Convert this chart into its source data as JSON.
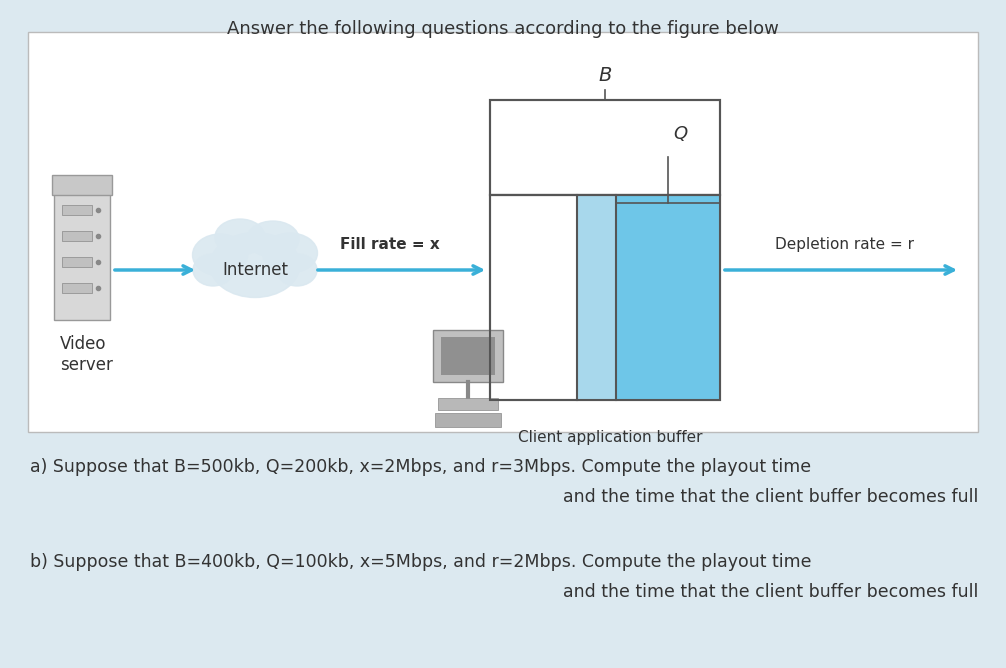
{
  "title": "Answer the following questions according to the figure below",
  "title_fontsize": 13,
  "bg_outer": "#dce9f0",
  "bg_inner": "#ffffff",
  "buffer_fill_color": "#6ec6e8",
  "buffer_outline_color": "#555555",
  "arrow_color": "#3ab0d8",
  "text_color": "#333333",
  "cloud_color": "#dae8f0",
  "label_fill": "Fill rate = x",
  "label_internet": "Internet",
  "label_depletion": "Depletion rate = r",
  "label_video_server": "Video\nserver",
  "label_client_buffer": "Client application buffer",
  "qa1": "a) Suppose that B=500kb, Q=200kb, x=2Mbps, and r=3Mbps. Compute the playout time",
  "qa2": "and the time that the client buffer becomes full",
  "qb1": "b) Suppose that B=400kb, Q=100kb, x=5Mbps, and r=2Mbps. Compute the playout time",
  "qb2": "and the time that the client buffer becomes full",
  "text_fontsize": 12,
  "question_fontsize": 12.5
}
